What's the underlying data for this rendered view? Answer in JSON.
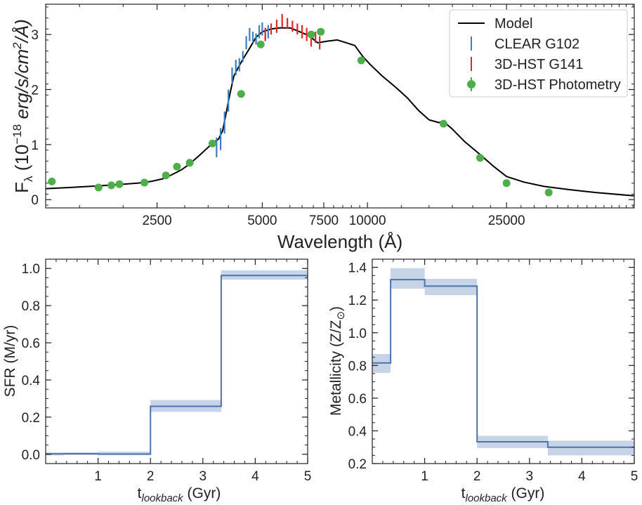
{
  "chart_data": [
    {
      "type": "line",
      "xlabel": "Wavelength (Å)",
      "ylabel_main": "F",
      "ylabel_sub": "λ",
      "ylabel_rest": " (10",
      "ylabel_sup": "−18",
      "ylabel_units": " erg/s/cm",
      "ylabel_units_sup": "2",
      "ylabel_units_end": "/Å)",
      "x_scale": "log",
      "xlim": [
        1200,
        58000
      ],
      "ylim": [
        -0.15,
        3.55
      ],
      "x_ticks": [
        2500,
        5000,
        7500,
        10000,
        25000
      ],
      "x_tick_labels": [
        "2500",
        "5000",
        "7500",
        "10000",
        "25000"
      ],
      "y_ticks": [
        0,
        1,
        2,
        3
      ],
      "y_tick_labels": [
        "0",
        "1",
        "2",
        "3"
      ],
      "legend_position": "top-right",
      "legend": [
        {
          "label": "Model",
          "color": "#000000",
          "kind": "line"
        },
        {
          "label": "CLEAR G102",
          "color": "#3a7ebf",
          "kind": "errorbar"
        },
        {
          "label": "3D-HST G141",
          "color": "#e32626",
          "kind": "errorbar"
        },
        {
          "label": "3D-HST Photometry",
          "color": "#4daf4a",
          "kind": "point"
        }
      ],
      "model": {
        "name": "Model",
        "color": "#000000",
        "x": [
          1200,
          1400,
          1600,
          1800,
          2000,
          2200,
          2400,
          2600,
          2750,
          2850,
          2950,
          3100,
          3300,
          3500,
          3650,
          3750,
          3850,
          3950,
          4050,
          4150,
          4250,
          4400,
          4600,
          4800,
          5000,
          5300,
          5600,
          6000,
          6400,
          6800,
          7200,
          7700,
          8200,
          8700,
          9200,
          9700,
          10200,
          11000,
          12000,
          13000,
          14000,
          15000,
          16000,
          16500,
          17500,
          19000,
          21000,
          23000,
          25000,
          28000,
          32000,
          38000,
          45000,
          58000
        ],
        "y": [
          0.2,
          0.22,
          0.24,
          0.26,
          0.28,
          0.3,
          0.33,
          0.38,
          0.45,
          0.5,
          0.55,
          0.65,
          0.8,
          0.95,
          1.05,
          1.1,
          1.25,
          1.6,
          1.95,
          2.25,
          2.38,
          2.55,
          2.75,
          2.95,
          3.05,
          3.1,
          3.12,
          3.12,
          3.05,
          2.98,
          2.85,
          2.88,
          2.9,
          2.85,
          2.8,
          2.6,
          2.45,
          2.25,
          2.05,
          1.85,
          1.62,
          1.45,
          1.4,
          1.42,
          1.28,
          1.05,
          0.82,
          0.6,
          0.42,
          0.32,
          0.24,
          0.18,
          0.13,
          0.07
        ]
      },
      "clear_g102": {
        "name": "CLEAR G102",
        "color": "#3a7ebf",
        "x": [
          3700,
          3800,
          3900,
          4000,
          4100,
          4200,
          4300,
          4400,
          4500,
          4600,
          4700,
          4800,
          4900,
          5000,
          5100,
          5200
        ],
        "y": [
          0.95,
          1.1,
          1.4,
          1.8,
          2.25,
          2.4,
          2.45,
          2.6,
          2.85,
          3.0,
          2.95,
          2.92,
          3.05,
          3.1,
          3.0,
          3.05
        ],
        "err": [
          0.18,
          0.2,
          0.2,
          0.2,
          0.15,
          0.14,
          0.12,
          0.1,
          0.12,
          0.12,
          0.1,
          0.1,
          0.12,
          0.12,
          0.12,
          0.12
        ]
      },
      "hst_g141": {
        "name": "3D-HST G141",
        "color": "#e32626",
        "x": [
          5100,
          5300,
          5500,
          5700,
          5900,
          6100,
          6300,
          6500,
          6700,
          6900,
          7100,
          7300
        ],
        "y": [
          3.0,
          3.1,
          3.15,
          3.25,
          3.2,
          3.15,
          3.1,
          3.05,
          3.0,
          2.9,
          2.95,
          2.85
        ],
        "err": [
          0.12,
          0.1,
          0.12,
          0.12,
          0.1,
          0.1,
          0.1,
          0.12,
          0.12,
          0.12,
          0.1,
          0.12
        ]
      },
      "photometry": {
        "name": "3D-HST Photometry",
        "color": "#4daf4a",
        "x": [
          1250,
          1700,
          1850,
          1950,
          2300,
          2650,
          2850,
          3100,
          3600,
          4350,
          4950,
          6900,
          7350,
          9600,
          16500,
          21000,
          25000,
          33000
        ],
        "y": [
          0.33,
          0.22,
          0.26,
          0.28,
          0.31,
          0.44,
          0.6,
          0.67,
          1.02,
          1.92,
          2.82,
          3.0,
          3.05,
          2.53,
          1.38,
          0.76,
          0.3,
          0.13
        ]
      }
    },
    {
      "type": "line",
      "xlabel_main": "t",
      "xlabel_sub": "lookback",
      "xlabel_rest": " (Gyr)",
      "ylabel": "SFR (M/yr)",
      "xlim": [
        0,
        5
      ],
      "ylim": [
        -0.05,
        1.05
      ],
      "x_ticks": [
        1,
        2,
        3,
        4,
        5
      ],
      "x_tick_labels": [
        "1",
        "2",
        "3",
        "4",
        "5"
      ],
      "y_ticks": [
        0,
        0.2,
        0.4,
        0.6,
        0.8,
        1.0
      ],
      "y_tick_labels": [
        "0.0",
        "0.2",
        "0.4",
        "0.6",
        "0.8",
        "1.0"
      ],
      "color": "#4c72b0",
      "band_color": "#c7d4e8",
      "bins": [
        {
          "x0": 0,
          "x1": 0.35,
          "y": 0.002,
          "lo": -0.006,
          "hi": 0.01
        },
        {
          "x0": 0.35,
          "x1": 1.0,
          "y": 0.003,
          "lo": -0.004,
          "hi": 0.01
        },
        {
          "x0": 1.0,
          "x1": 2.0,
          "y": 0.001,
          "lo": -0.005,
          "hi": 0.014
        },
        {
          "x0": 2.0,
          "x1": 3.35,
          "y": 0.258,
          "lo": 0.228,
          "hi": 0.292
        },
        {
          "x0": 3.35,
          "x1": 5.0,
          "y": 0.962,
          "lo": 0.94,
          "hi": 0.99
        }
      ]
    },
    {
      "type": "line",
      "xlabel_main": "t",
      "xlabel_sub": "lookback",
      "xlabel_rest": " (Gyr)",
      "ylabel": "Metallicity (Z/Z",
      "ylabel_sub": "⊙",
      "ylabel_end": ")",
      "xlim": [
        0,
        5
      ],
      "ylim": [
        0.2,
        1.45
      ],
      "x_ticks": [
        1,
        2,
        3,
        4,
        5
      ],
      "x_tick_labels": [
        "1",
        "2",
        "3",
        "4",
        "5"
      ],
      "y_ticks": [
        0.2,
        0.4,
        0.6,
        0.8,
        1.0,
        1.2,
        1.4
      ],
      "y_tick_labels": [
        "0.2",
        "0.4",
        "0.6",
        "0.8",
        "1.0",
        "1.2",
        "1.4"
      ],
      "color": "#4c72b0",
      "band_color": "#c7d4e8",
      "bins": [
        {
          "x0": 0,
          "x1": 0.35,
          "y": 0.815,
          "lo": 0.755,
          "hi": 0.87
        },
        {
          "x0": 0.35,
          "x1": 1.0,
          "y": 1.325,
          "lo": 1.27,
          "hi": 1.395
        },
        {
          "x0": 1.0,
          "x1": 2.0,
          "y": 1.285,
          "lo": 1.23,
          "hi": 1.33
        },
        {
          "x0": 2.0,
          "x1": 3.35,
          "y": 0.333,
          "lo": 0.295,
          "hi": 0.37
        },
        {
          "x0": 3.35,
          "x1": 5.0,
          "y": 0.3,
          "lo": 0.25,
          "hi": 0.34
        }
      ]
    }
  ]
}
